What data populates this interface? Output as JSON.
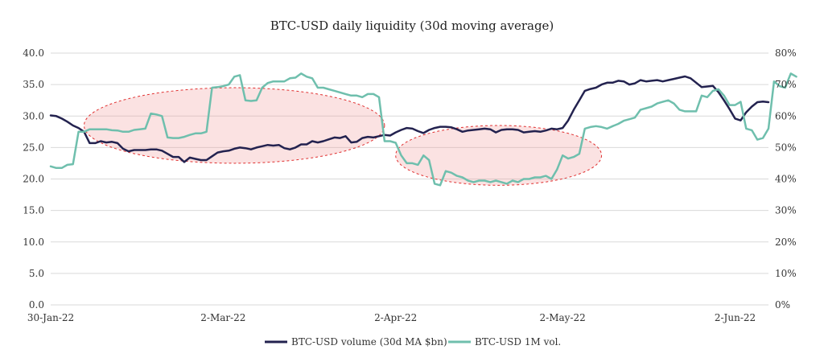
{
  "chart_data": {
    "type": "line",
    "title": "BTC-USD daily liquidity (30d moving average)",
    "x_tick_labels": [
      "30-Jan-22",
      "2-Mar-22",
      "2-Apr-22",
      "2-May-22",
      "2-Jun-22"
    ],
    "y_left": {
      "lim": [
        0,
        40
      ],
      "ticks": [
        "0.0",
        "5.0",
        "10.0",
        "15.0",
        "20.0",
        "25.0",
        "30.0",
        "35.0",
        "40.0"
      ]
    },
    "y_right": {
      "lim": [
        0,
        80
      ],
      "ticks": [
        "0%",
        "10%",
        "20%",
        "30%",
        "40%",
        "50%",
        "60%",
        "70%",
        "80%"
      ]
    },
    "grid": true,
    "legend_position": "bottom",
    "series": [
      {
        "name": "BTC-USD volume (30d MA $bn)",
        "color": "#23224f",
        "axis": "left",
        "values": [
          30.1,
          30.0,
          29.6,
          29.1,
          28.5,
          28.1,
          27.5,
          25.7,
          25.7,
          26.0,
          25.8,
          25.9,
          25.7,
          24.8,
          24.4,
          24.6,
          24.6,
          24.6,
          24.7,
          24.7,
          24.5,
          24.0,
          23.5,
          23.5,
          22.7,
          23.4,
          23.2,
          23.0,
          23.0,
          23.6,
          24.2,
          24.4,
          24.5,
          24.8,
          25.0,
          24.9,
          24.7,
          25.0,
          25.2,
          25.4,
          25.3,
          25.4,
          24.9,
          24.7,
          25.0,
          25.5,
          25.5,
          26.0,
          25.8,
          26.0,
          26.3,
          26.6,
          26.5,
          26.8,
          25.8,
          25.9,
          26.5,
          26.7,
          26.6,
          26.8,
          27.0,
          26.9,
          27.4,
          27.8,
          28.1,
          28.0,
          27.6,
          27.3,
          27.8,
          28.1,
          28.3,
          28.3,
          28.2,
          27.9,
          27.5,
          27.7,
          27.8,
          27.9,
          28.0,
          27.9,
          27.4,
          27.8,
          27.9,
          27.9,
          27.8,
          27.4,
          27.5,
          27.6,
          27.5,
          27.7,
          28.0,
          27.9,
          28.1,
          29.3,
          31.0,
          32.5,
          34.0,
          34.3,
          34.5,
          35.0,
          35.3,
          35.3,
          35.6,
          35.5,
          35.0,
          35.2,
          35.7,
          35.5,
          35.6,
          35.7,
          35.5,
          35.7,
          35.9,
          36.1,
          36.3,
          36.0,
          35.3,
          34.6,
          34.7,
          34.8,
          33.8,
          32.5,
          31.1,
          29.6,
          29.3,
          30.6,
          31.5,
          32.2,
          32.3,
          32.2
        ]
      },
      {
        "name": "BTC-USD 1M vol.",
        "color": "#6fbfad",
        "axis": "right",
        "values": [
          44.0,
          43.5,
          43.5,
          44.5,
          44.7,
          55.0,
          55.0,
          55.8,
          55.8,
          55.8,
          55.8,
          55.5,
          55.4,
          55.0,
          55.0,
          55.6,
          55.8,
          56.0,
          60.8,
          60.5,
          60.0,
          53.2,
          53.0,
          53.0,
          53.4,
          54.0,
          54.5,
          54.5,
          55.0,
          69.0,
          69.2,
          69.5,
          70.0,
          72.5,
          73.0,
          65.0,
          64.8,
          65.0,
          69.0,
          70.5,
          71.0,
          71.0,
          71.0,
          72.0,
          72.2,
          73.5,
          72.5,
          72.0,
          69.0,
          69.0,
          68.5,
          68.0,
          67.5,
          67.0,
          66.5,
          66.5,
          66.0,
          67.0,
          67.0,
          66.0,
          52.0,
          52.0,
          51.5,
          47.5,
          45.0,
          45.0,
          44.5,
          47.5,
          46.0,
          38.5,
          38.0,
          42.5,
          42.0,
          41.0,
          40.5,
          39.5,
          39.0,
          39.5,
          39.5,
          39.0,
          39.5,
          39.0,
          38.5,
          39.5,
          39.0,
          40.0,
          40.0,
          40.5,
          40.5,
          41.0,
          40.0,
          43.0,
          47.5,
          46.5,
          47.0,
          48.0,
          56.0,
          56.5,
          56.8,
          56.5,
          56.0,
          56.8,
          57.5,
          58.5,
          59.0,
          59.5,
          62.0,
          62.5,
          63.0,
          64.0,
          64.5,
          65.0,
          64.0,
          62.0,
          61.5,
          61.5,
          61.5,
          66.5,
          66.0,
          68.0,
          68.5,
          66.5,
          63.5,
          63.5,
          64.5,
          56.0,
          55.5,
          52.5,
          53.0,
          56.0,
          71.0,
          69.5,
          69.0,
          73.5,
          72.5
        ]
      }
    ],
    "annotations": [
      {
        "type": "ellipse",
        "x_range": [
          "2022-02-05",
          "2022-03-31"
        ],
        "y_range": [
          22.5,
          34.5
        ]
      },
      {
        "type": "ellipse",
        "x_range": [
          "2022-04-02",
          "2022-05-09"
        ],
        "y_range": [
          19.0,
          28.5
        ]
      }
    ]
  }
}
